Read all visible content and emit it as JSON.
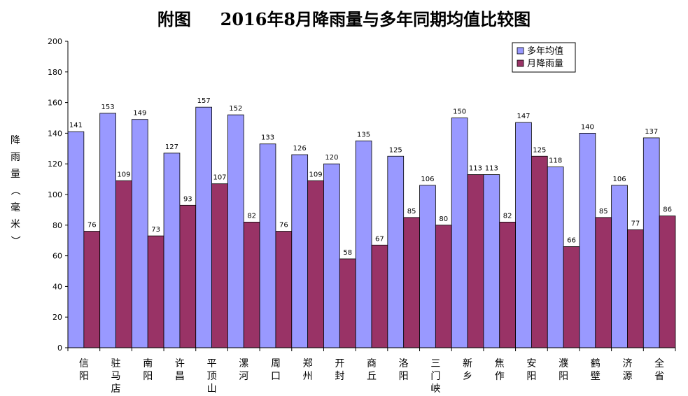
{
  "chart_data": {
    "type": "bar",
    "title_prefix": "附图",
    "title_main": "2016年8月降雨量与多年同期均值比较图",
    "ylabel": "降雨量（毫米）",
    "ylim": [
      0,
      200
    ],
    "yticks": [
      0,
      20,
      40,
      60,
      80,
      100,
      120,
      140,
      160,
      180,
      200
    ],
    "legend_position": "top-right",
    "categories": [
      "信阳",
      "驻马店",
      "南阳",
      "许昌",
      "平顶山",
      "漯河",
      "周口",
      "郑州",
      "开封",
      "商丘",
      "洛阳",
      "三门峡",
      "新乡",
      "焦作",
      "安阳",
      "濮阳",
      "鹤壁",
      "济源",
      "全省"
    ],
    "series": [
      {
        "name": "多年均值",
        "color": "#9999ff",
        "values": [
          141,
          153,
          149,
          127,
          157,
          152,
          133,
          126,
          120,
          135,
          125,
          106,
          150,
          113,
          147,
          118,
          140,
          106,
          137
        ]
      },
      {
        "name": "月降雨量",
        "color": "#993366",
        "values": [
          76,
          109,
          73,
          93,
          107,
          82,
          76,
          109,
          58,
          67,
          85,
          80,
          113,
          82,
          125,
          66,
          85,
          77,
          86
        ]
      }
    ]
  }
}
